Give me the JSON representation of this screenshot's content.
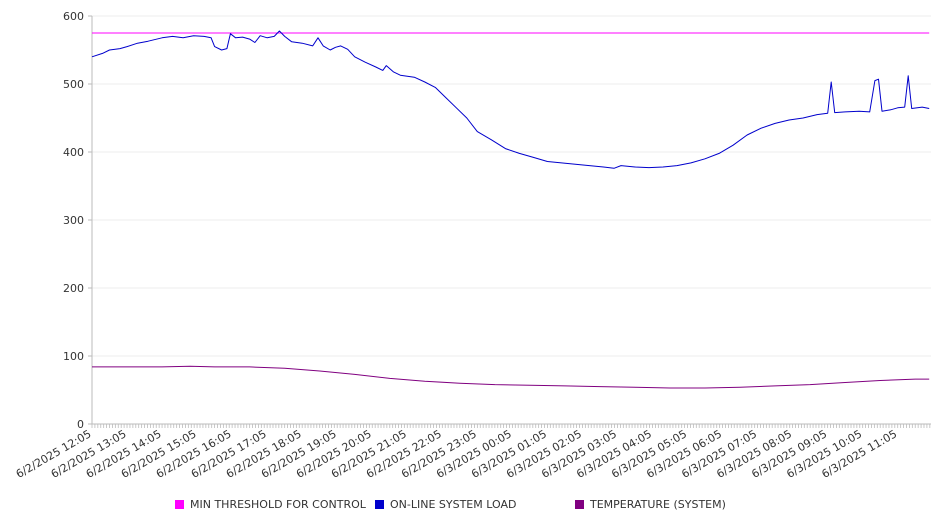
{
  "chart_data": {
    "type": "line",
    "title": "",
    "xlabel": "",
    "ylabel": "",
    "ylim": [
      0,
      600
    ],
    "yticks": [
      "0",
      "100",
      "200",
      "300",
      "400",
      "500",
      "600"
    ],
    "grid": true,
    "legend_position": "bottom",
    "categories": [
      "6/2/2025 12:05",
      "6/2/2025 13:05",
      "6/2/2025 14:05",
      "6/2/2025 15:05",
      "6/2/2025 16:05",
      "6/2/2025 17:05",
      "6/2/2025 18:05",
      "6/2/2025 19:05",
      "6/2/2025 20:05",
      "6/2/2025 21:05",
      "6/2/2025 22:05",
      "6/2/2025 23:05",
      "6/3/2025 00:05",
      "6/3/2025 01:05",
      "6/3/2025 02:05",
      "6/3/2025 03:05",
      "6/3/2025 04:05",
      "6/3/2025 05:05",
      "6/3/2025 06:05",
      "6/3/2025 07:05",
      "6/3/2025 08:05",
      "6/3/2025 09:05",
      "6/3/2025 10:05",
      "6/3/2025 11:05"
    ],
    "series": [
      {
        "name": "MIN THRESHOLD FOR CONTROL",
        "color": "#ff00ff",
        "points": [
          [
            0,
            575
          ],
          [
            23.9,
            575
          ]
        ]
      },
      {
        "name": "ON-LINE SYSTEM LOAD",
        "color": "#0000cc",
        "points": [
          [
            0,
            540
          ],
          [
            0.3,
            545
          ],
          [
            0.5,
            550
          ],
          [
            0.8,
            552
          ],
          [
            1.0,
            555
          ],
          [
            1.3,
            560
          ],
          [
            1.6,
            563
          ],
          [
            2.0,
            568
          ],
          [
            2.3,
            570
          ],
          [
            2.6,
            568
          ],
          [
            2.9,
            571
          ],
          [
            3.2,
            570
          ],
          [
            3.4,
            568
          ],
          [
            3.5,
            555
          ],
          [
            3.7,
            550
          ],
          [
            3.85,
            552
          ],
          [
            3.95,
            574
          ],
          [
            4.1,
            568
          ],
          [
            4.3,
            569
          ],
          [
            4.5,
            566
          ],
          [
            4.65,
            561
          ],
          [
            4.8,
            571
          ],
          [
            5.0,
            568
          ],
          [
            5.2,
            570
          ],
          [
            5.35,
            578
          ],
          [
            5.5,
            570
          ],
          [
            5.7,
            562
          ],
          [
            6.0,
            560
          ],
          [
            6.3,
            556
          ],
          [
            6.45,
            568
          ],
          [
            6.6,
            556
          ],
          [
            6.8,
            550
          ],
          [
            6.95,
            554
          ],
          [
            7.1,
            556
          ],
          [
            7.3,
            551
          ],
          [
            7.5,
            540
          ],
          [
            7.8,
            532
          ],
          [
            8.1,
            525
          ],
          [
            8.3,
            520
          ],
          [
            8.4,
            527
          ],
          [
            8.6,
            518
          ],
          [
            8.8,
            513
          ],
          [
            9.2,
            510
          ],
          [
            9.5,
            503
          ],
          [
            9.8,
            495
          ],
          [
            10.1,
            480
          ],
          [
            10.4,
            465
          ],
          [
            10.7,
            450
          ],
          [
            11.0,
            430
          ],
          [
            11.4,
            418
          ],
          [
            11.8,
            405
          ],
          [
            12.2,
            398
          ],
          [
            12.6,
            392
          ],
          [
            13.0,
            386
          ],
          [
            13.4,
            384
          ],
          [
            13.8,
            382
          ],
          [
            14.2,
            380
          ],
          [
            14.6,
            378
          ],
          [
            14.9,
            376
          ],
          [
            15.1,
            380
          ],
          [
            15.5,
            378
          ],
          [
            15.9,
            377
          ],
          [
            16.3,
            378
          ],
          [
            16.7,
            380
          ],
          [
            17.1,
            384
          ],
          [
            17.5,
            390
          ],
          [
            17.9,
            398
          ],
          [
            18.3,
            410
          ],
          [
            18.7,
            425
          ],
          [
            19.1,
            435
          ],
          [
            19.5,
            442
          ],
          [
            19.9,
            447
          ],
          [
            20.3,
            450
          ],
          [
            20.7,
            455
          ],
          [
            21.0,
            457
          ],
          [
            21.1,
            503
          ],
          [
            21.2,
            458
          ],
          [
            21.5,
            459
          ],
          [
            21.9,
            460
          ],
          [
            22.2,
            459
          ],
          [
            22.35,
            505
          ],
          [
            22.45,
            507
          ],
          [
            22.55,
            460
          ],
          [
            22.8,
            462
          ],
          [
            23.0,
            465
          ],
          [
            23.2,
            466
          ],
          [
            23.3,
            512
          ],
          [
            23.4,
            464
          ],
          [
            23.7,
            466
          ],
          [
            23.9,
            464
          ]
        ]
      },
      {
        "name": "TEMPERATURE (SYSTEM)",
        "color": "#800080",
        "points": [
          [
            0,
            84
          ],
          [
            1,
            84
          ],
          [
            2,
            84
          ],
          [
            2.8,
            85
          ],
          [
            3.5,
            84
          ],
          [
            4.5,
            84
          ],
          [
            5.5,
            82
          ],
          [
            6.5,
            78
          ],
          [
            7.5,
            73
          ],
          [
            8.5,
            67
          ],
          [
            9.5,
            63
          ],
          [
            10.5,
            60
          ],
          [
            11.5,
            58
          ],
          [
            12.5,
            57
          ],
          [
            13.5,
            56
          ],
          [
            14.5,
            55
          ],
          [
            15.5,
            54
          ],
          [
            16.5,
            53
          ],
          [
            17.5,
            53
          ],
          [
            18.5,
            54
          ],
          [
            19.5,
            56
          ],
          [
            20.5,
            58
          ],
          [
            21.5,
            61
          ],
          [
            22.5,
            64
          ],
          [
            23.5,
            66
          ],
          [
            23.9,
            66
          ]
        ]
      }
    ]
  }
}
